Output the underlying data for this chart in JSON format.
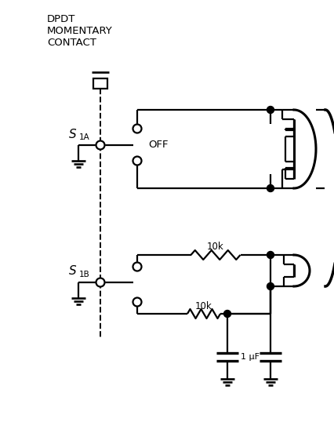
{
  "bg_color": "#ffffff",
  "line_color": "#000000",
  "lw": 1.6,
  "lw_thick": 2.2,
  "fig_width": 4.26,
  "fig_height": 5.52,
  "dpi": 100,
  "dpdt_label": "DPDT\nMOMENTARY\nCONTACT",
  "s1a_label": "S",
  "s1a_sub": "1A",
  "s1b_label": "S",
  "s1b_sub": "1B",
  "off_label": "OFF",
  "r1_label": "10k",
  "r2_label": "10k",
  "c_label": "1 μF"
}
